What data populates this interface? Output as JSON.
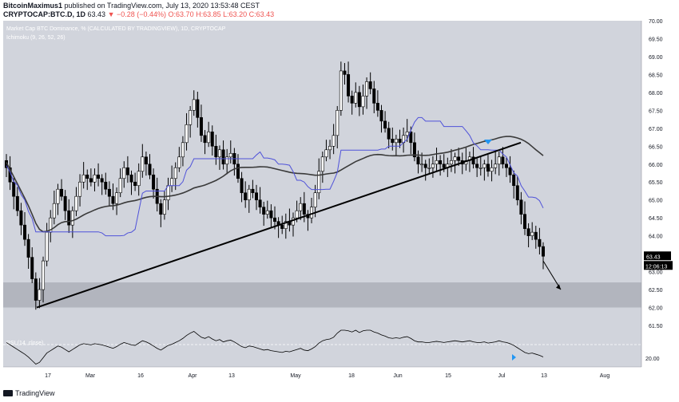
{
  "header": {
    "publisher": "BitcoinMaximus1",
    "published_text": "published on TradingView.com, July 13, 2020 13:53:48 CEST",
    "symbol": "CRYPTOCAP:BTC.D, 1D",
    "price": "63.43",
    "change": "▼ −0.28 (−0.44%)",
    "ohlc": "O:63.70 H:63.85 L:63.20 C:63.43"
  },
  "chart_data": {
    "type": "candlestick",
    "title": "Market Cap BTC Dominance, % (CALCULATED BY TRADINGVIEW), 1D, CRYPTOCAP",
    "indicator_label": "Ichimoku (9, 26, 52, 26)",
    "rsi_label": "RSI (14, close)",
    "rsi_value_label": "20.00",
    "x_tick_labels": [
      "17",
      "Mar",
      "16",
      "Apr",
      "13",
      "May",
      "18",
      "Jun",
      "15",
      "Jul",
      "13",
      "Aug"
    ],
    "y_tick_labels": [
      "70.00",
      "69.50",
      "69.00",
      "68.50",
      "68.00",
      "67.50",
      "67.00",
      "66.50",
      "66.00",
      "65.50",
      "65.00",
      "64.50",
      "64.00",
      "63.50",
      "63.00",
      "62.50",
      "62.00",
      "61.50"
    ],
    "ylim": [
      61.5,
      70.0
    ],
    "last_price_label": "63.43",
    "countdown_label": "12:06:13",
    "support_zone": [
      62.0,
      62.7
    ],
    "trendline": {
      "from": [
        62.0,
        0
      ],
      "to": [
        66.6,
        1
      ]
    },
    "closes": [
      65.9,
      65.5,
      65.1,
      64.7,
      64.3,
      63.9,
      63.4,
      62.8,
      62.2,
      62.5,
      63.3,
      64.1,
      64.5,
      64.9,
      65.3,
      65.1,
      64.7,
      64.3,
      64.7,
      65.1,
      65.5,
      65.7,
      65.6,
      65.5,
      65.7,
      65.6,
      65.5,
      65.3,
      65.1,
      64.9,
      65.2,
      65.6,
      65.9,
      65.7,
      65.5,
      65.4,
      65.8,
      66.2,
      66.0,
      65.7,
      65.3,
      64.9,
      64.6,
      65.0,
      65.4,
      65.6,
      65.9,
      66.2,
      66.6,
      67.1,
      67.5,
      67.8,
      67.3,
      66.8,
      66.6,
      66.9,
      66.5,
      66.2,
      66.4,
      66.0,
      66.2,
      66.3,
      66.0,
      65.6,
      65.2,
      65.0,
      65.3,
      65.2,
      65.0,
      64.8,
      64.6,
      64.7,
      64.5,
      64.4,
      64.3,
      64.2,
      64.4,
      64.3,
      64.5,
      64.7,
      64.9,
      64.6,
      64.5,
      64.8,
      65.2,
      65.8,
      66.2,
      66.4,
      66.5,
      66.8,
      67.5,
      68.6,
      68.5,
      67.9,
      67.7,
      68.0,
      67.6,
      67.9,
      68.3,
      68.1,
      67.7,
      67.5,
      67.2,
      67.0,
      66.7,
      66.6,
      66.7,
      66.6,
      66.8,
      66.9,
      66.6,
      66.2,
      66.0,
      66.0,
      65.9,
      65.9,
      66.0,
      66.1,
      66.0,
      65.9,
      66.0,
      66.1,
      66.2,
      66.1,
      66.0,
      66.1,
      66.2,
      66.0,
      65.9,
      65.9,
      66.0,
      65.8,
      65.9,
      66.0,
      66.2,
      66.0,
      65.9,
      65.7,
      65.4,
      65.0,
      64.6,
      64.2,
      64.0,
      64.1,
      63.9,
      63.7,
      63.43
    ]
  },
  "colors": {
    "plot_bg": "#d1d4dc",
    "candle_up": "#ffffff",
    "candle_down": "#000000",
    "base_line": "#3a3a3a",
    "conversion_line": "#4f52d9",
    "support_zone": "#b2b5be",
    "marker": "#2196f3"
  },
  "brand": {
    "logo_text": "TradingView"
  }
}
